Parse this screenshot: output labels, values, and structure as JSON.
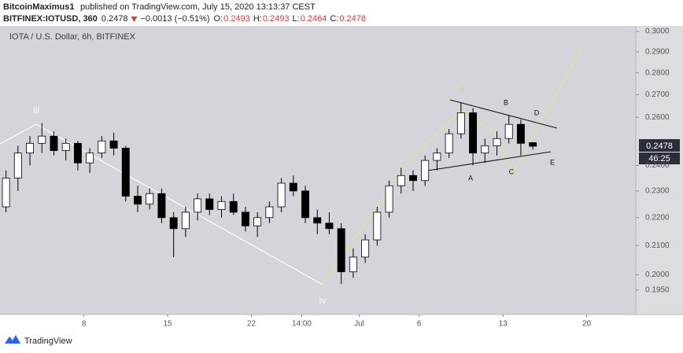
{
  "header": {
    "author": "BitcoinMaximus1",
    "published": "published on TradingView.com, July 15, 2020 13:13:37 CEST",
    "symbol": "BITFINEX:IOTUSD, 360",
    "last": "0.2478",
    "change": "−0.0013 (−0.51%)",
    "ohlc": [
      {
        "label": "O:",
        "value": "0.2493"
      },
      {
        "label": "H:",
        "value": "0.2493"
      },
      {
        "label": "L:",
        "value": "0.2464"
      },
      {
        "label": "C:",
        "value": "0.2478"
      }
    ]
  },
  "chart_data": {
    "type": "candlestick",
    "title": "IOTA / U.S. Dollar, 6h, BITFINEX",
    "log_scale": true,
    "up_color": "#ffffff",
    "down_color": "#000000",
    "x": [
      0.5,
      1.5,
      2.5,
      3.5,
      4.5,
      5.5,
      6.5,
      7.5,
      8.5,
      9.5,
      10.5,
      11.5,
      12.5,
      13.5,
      14.5,
      15.5,
      16.5,
      17.5,
      18.5,
      19.5,
      20.5,
      21.5,
      22.5,
      23.5,
      24.5,
      25.5,
      26.5,
      27.5,
      28.5,
      29.5,
      30.5,
      31.5,
      32.5,
      33.5,
      34.5,
      35.5,
      36.5,
      37.5,
      38.5,
      39.5,
      40.5,
      41.5,
      42.5,
      43.5,
      44.5
    ],
    "open": [
      0.224,
      0.235,
      0.245,
      0.249,
      0.252,
      0.246,
      0.249,
      0.241,
      0.245,
      0.25,
      0.247,
      0.228,
      0.225,
      0.229,
      0.22,
      0.216,
      0.222,
      0.227,
      0.223,
      0.226,
      0.222,
      0.217,
      0.22,
      0.224,
      0.233,
      0.23,
      0.22,
      0.218,
      0.216,
      0.201,
      0.206,
      0.212,
      0.222,
      0.232,
      0.236,
      0.234,
      0.242,
      0.245,
      0.253,
      0.262,
      0.245,
      0.248,
      0.251,
      0.257,
      0.2493
    ],
    "high": [
      0.238,
      0.248,
      0.252,
      0.2575,
      0.254,
      0.251,
      0.25,
      0.247,
      0.252,
      0.2535,
      0.248,
      0.232,
      0.231,
      0.231,
      0.222,
      0.224,
      0.229,
      0.229,
      0.228,
      0.229,
      0.224,
      0.222,
      0.226,
      0.235,
      0.236,
      0.232,
      0.223,
      0.222,
      0.218,
      0.209,
      0.214,
      0.224,
      0.234,
      0.239,
      0.238,
      0.244,
      0.247,
      0.255,
      0.2665,
      0.264,
      0.251,
      0.254,
      0.261,
      0.259,
      0.2493
    ],
    "low": [
      0.222,
      0.23,
      0.24,
      0.245,
      0.244,
      0.242,
      0.238,
      0.237,
      0.243,
      0.244,
      0.226,
      0.222,
      0.223,
      0.218,
      0.206,
      0.213,
      0.219,
      0.221,
      0.22,
      0.221,
      0.215,
      0.213,
      0.218,
      0.222,
      0.228,
      0.218,
      0.214,
      0.214,
      0.197,
      0.199,
      0.204,
      0.21,
      0.22,
      0.229,
      0.23,
      0.232,
      0.238,
      0.243,
      0.251,
      0.24,
      0.241,
      0.244,
      0.249,
      0.244,
      0.2464
    ],
    "close": [
      0.235,
      0.245,
      0.249,
      0.252,
      0.246,
      0.249,
      0.241,
      0.245,
      0.25,
      0.247,
      0.228,
      0.225,
      0.229,
      0.22,
      0.216,
      0.222,
      0.227,
      0.223,
      0.226,
      0.222,
      0.217,
      0.22,
      0.224,
      0.233,
      0.23,
      0.22,
      0.218,
      0.216,
      0.201,
      0.206,
      0.212,
      0.222,
      0.232,
      0.236,
      0.234,
      0.242,
      0.245,
      0.253,
      0.262,
      0.245,
      0.248,
      0.251,
      0.257,
      0.249,
      0.2478
    ],
    "xlim": [
      0,
      53.1
    ],
    "xticks": [
      {
        "value": 7,
        "label": "8"
      },
      {
        "value": 14,
        "label": "15"
      },
      {
        "value": 21,
        "label": "22"
      },
      {
        "value": 25.2,
        "label": "14:00"
      },
      {
        "value": 30,
        "label": "Jul"
      },
      {
        "value": 35,
        "label": "6"
      },
      {
        "value": 42,
        "label": "13"
      },
      {
        "value": 49,
        "label": "20"
      }
    ],
    "ylim": [
      0.1877,
      0.3028
    ],
    "yticks": [
      {
        "value": 0.195,
        "label": "0.1950"
      },
      {
        "value": 0.2,
        "label": "0.2000"
      },
      {
        "value": 0.21,
        "label": "0.2100"
      },
      {
        "value": 0.22,
        "label": "0.2200"
      },
      {
        "value": 0.23,
        "label": "0.2300"
      },
      {
        "value": 0.24,
        "label": "0.2400"
      },
      {
        "value": 0.26,
        "label": "0.2600"
      },
      {
        "value": 0.27,
        "label": "0.2700"
      },
      {
        "value": 0.28,
        "label": "0.2800"
      },
      {
        "value": 0.29,
        "label": "0.2900"
      },
      {
        "value": 0.3,
        "label": "0.3000"
      }
    ],
    "last_price": 0.2478,
    "countdown": "46:25",
    "annotations": [
      "iii",
      "iv",
      "v",
      "A",
      "B",
      "C",
      "D",
      "E"
    ]
  },
  "footer": {
    "brand": "TradingView"
  }
}
